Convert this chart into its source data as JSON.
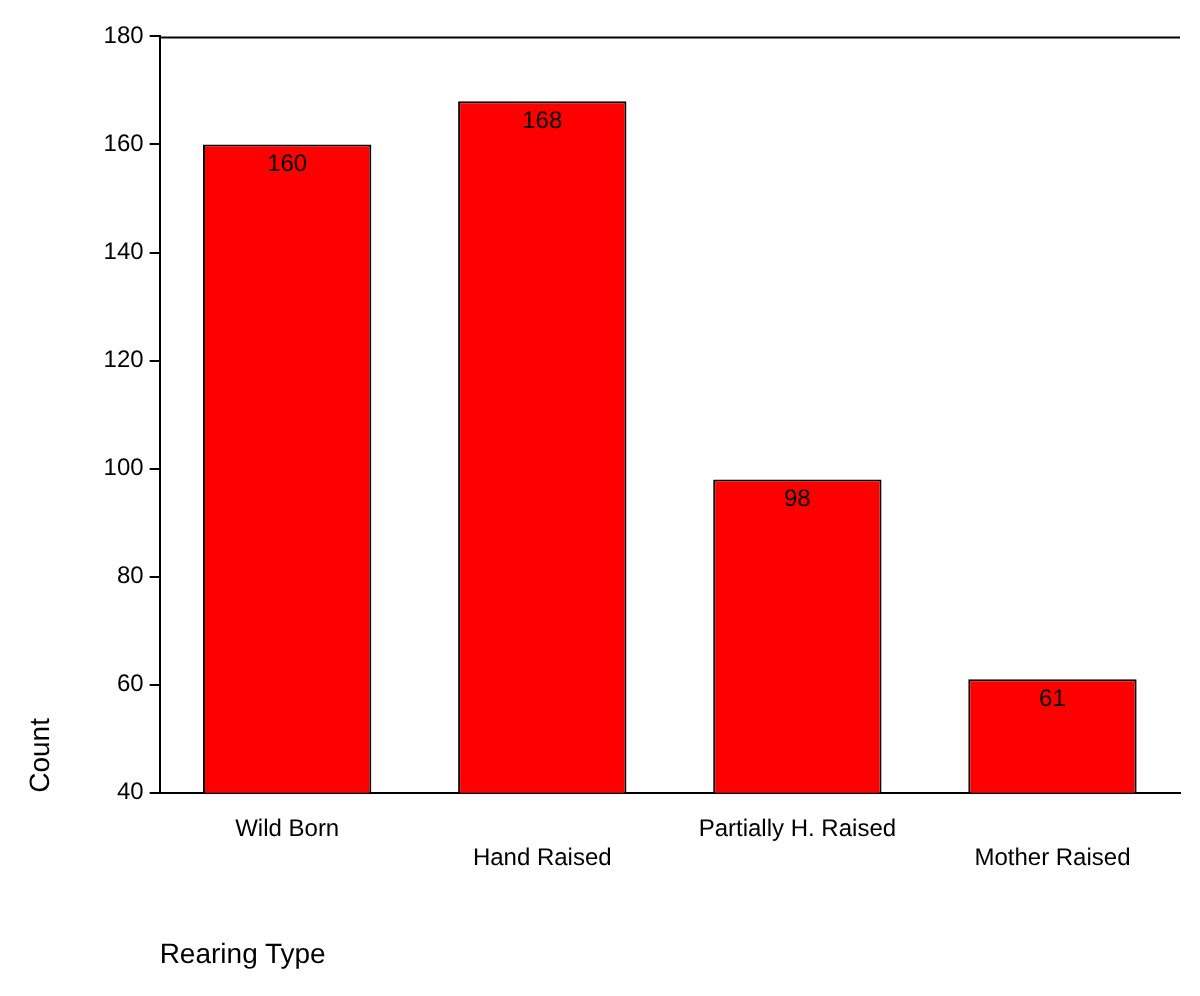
{
  "chart_data": {
    "type": "bar",
    "xlabel": "Rearing Type",
    "ylabel": "Count",
    "categories": [
      "Wild Born",
      "Hand Raised",
      "Partially H. Raised",
      "Mother Raised"
    ],
    "values": [
      160,
      168,
      98,
      61
    ],
    "color": "#ff0000",
    "ylim": [
      40,
      180
    ],
    "yticks": [
      40,
      60,
      80,
      100,
      120,
      140,
      160,
      180
    ],
    "data_labels": true,
    "grid": false,
    "legend": false
  }
}
